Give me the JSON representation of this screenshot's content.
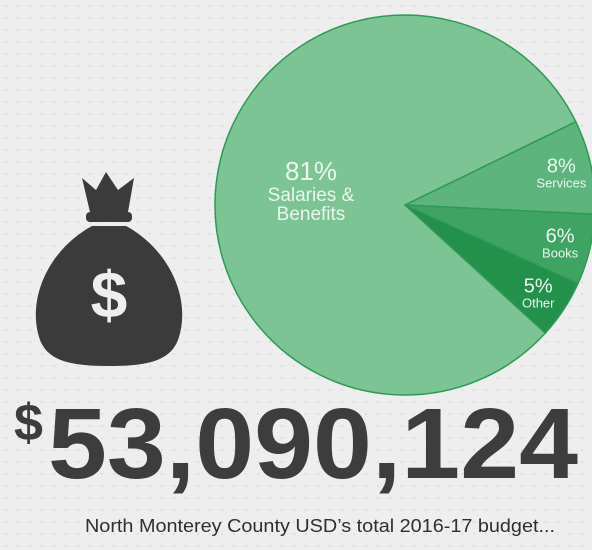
{
  "chart_data": {
    "type": "pie",
    "categories": [
      "Services",
      "Books",
      "Other",
      "Salaries & Benefits"
    ],
    "values": [
      8,
      6,
      5,
      81
    ],
    "value_labels": [
      "8%",
      "6%",
      "5%",
      "81%"
    ],
    "colors": [
      "#5db47c",
      "#3fa363",
      "#23904b",
      "#7cc494"
    ]
  },
  "total": {
    "currency": "$",
    "amount": "53,090,124"
  },
  "caption": "North Monterey County USD’s total 2016-17 budget..."
}
